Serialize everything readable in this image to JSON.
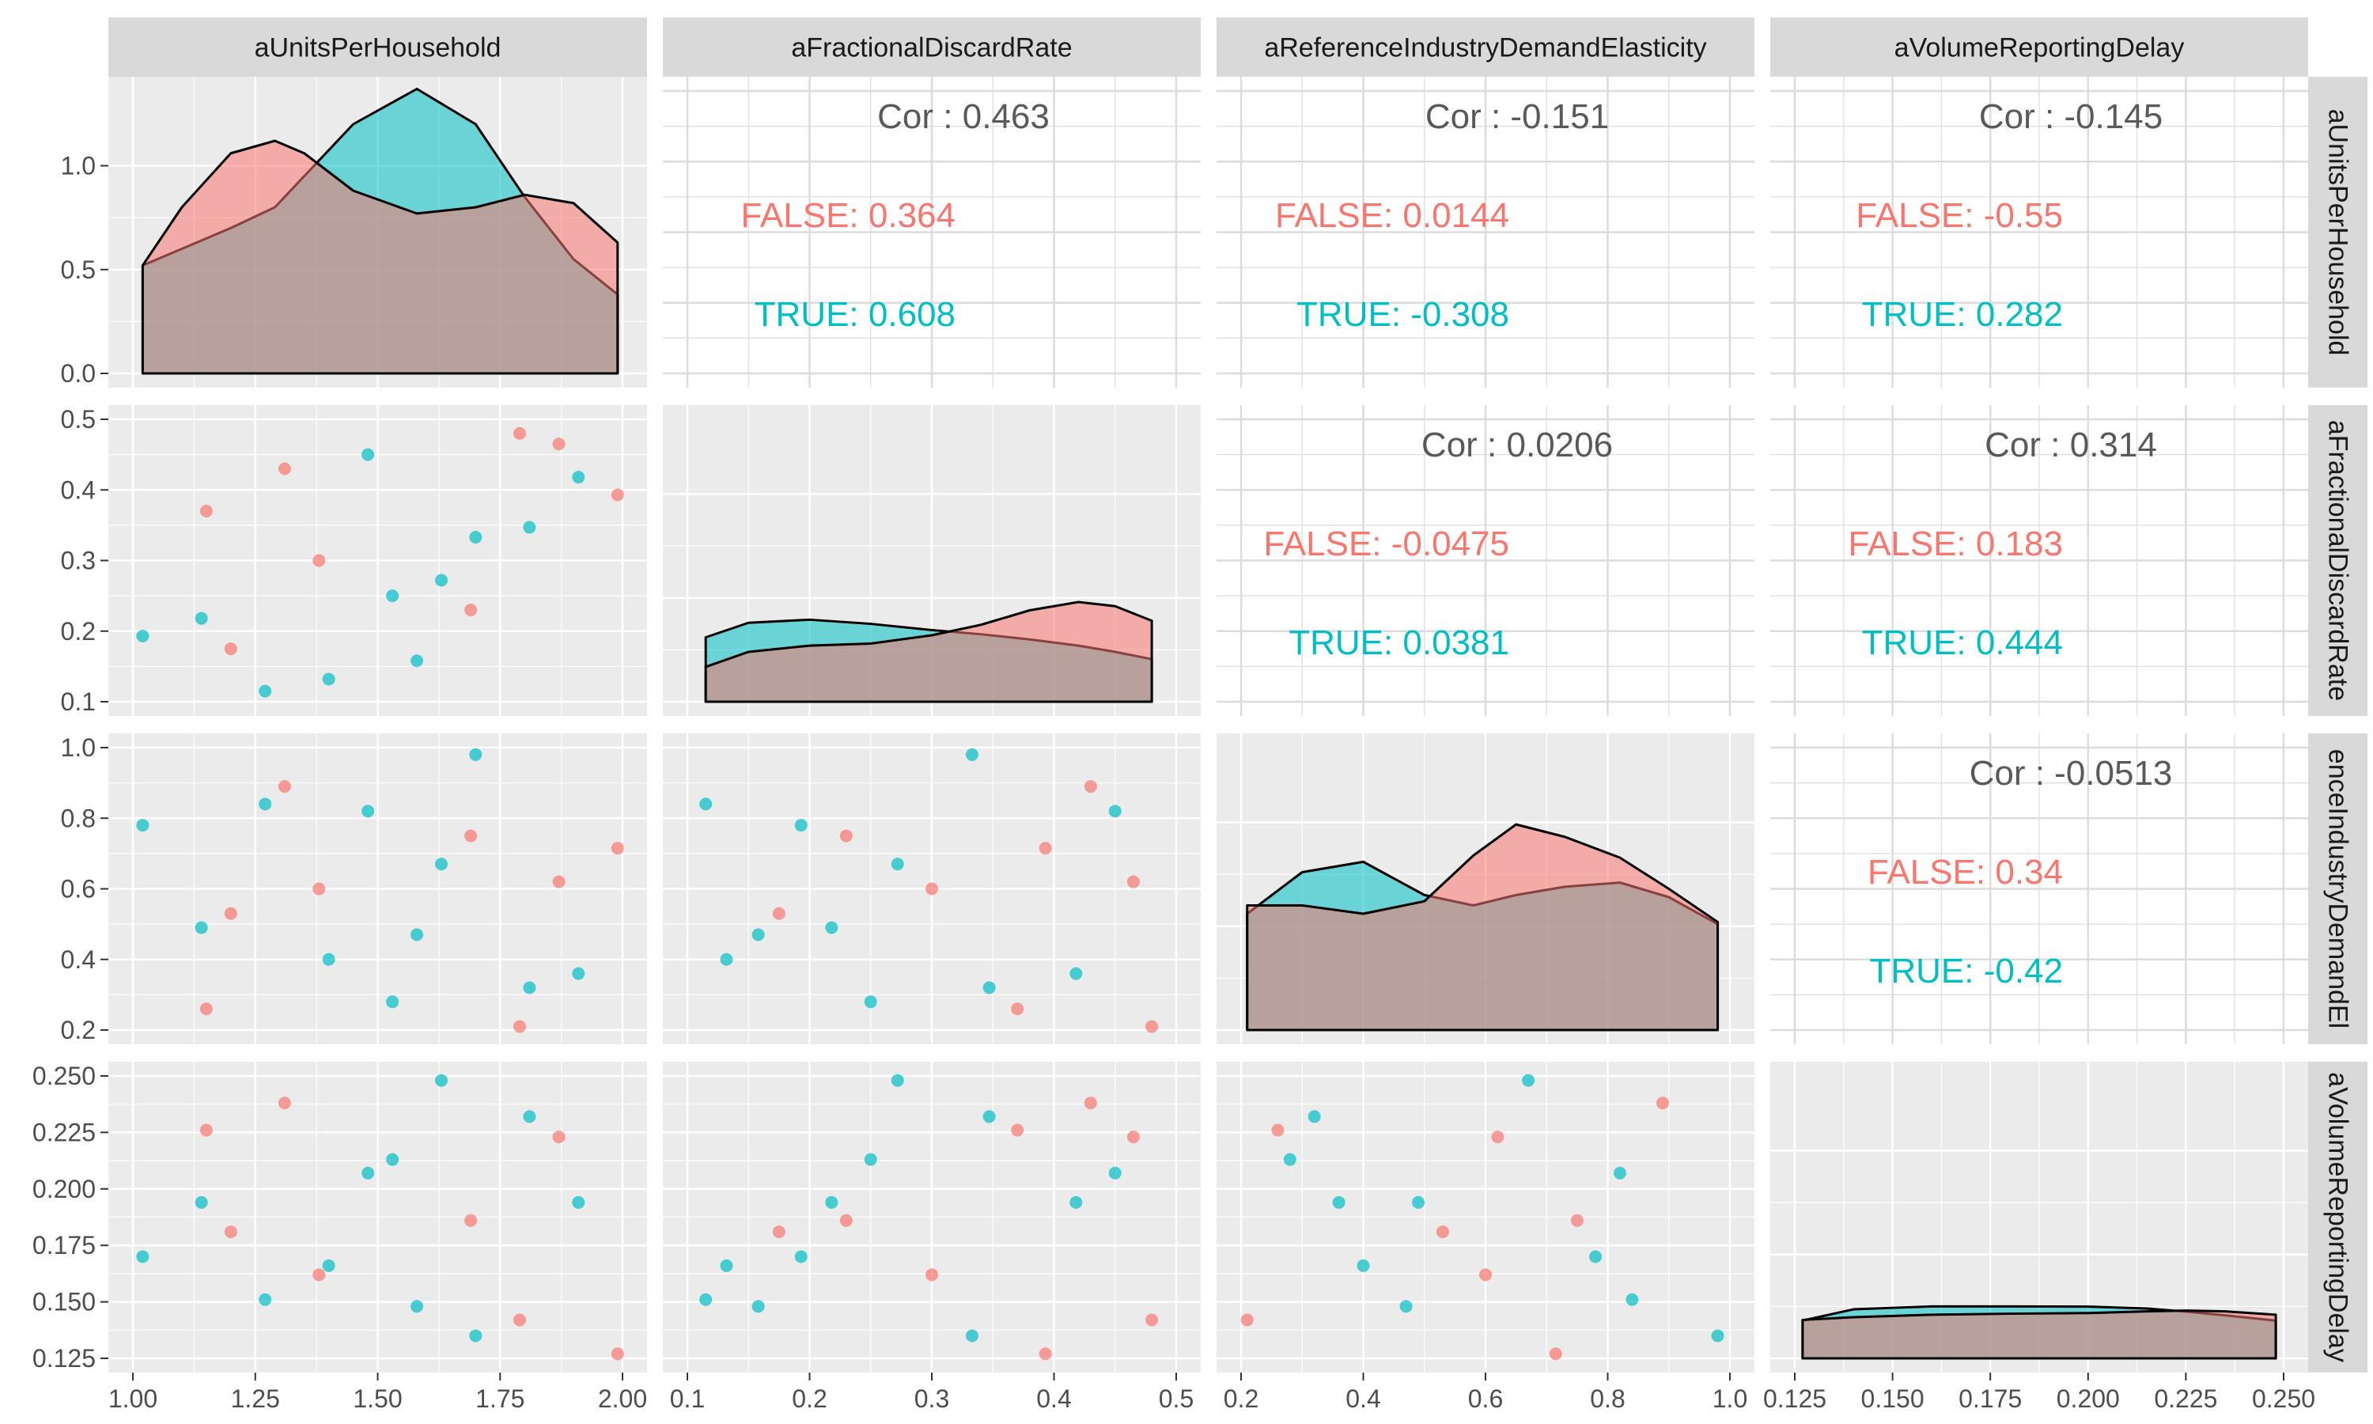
{
  "chart_data": {
    "type": "scatter-matrix",
    "variables": [
      "aUnitsPerHousehold",
      "aFractionalDiscardRate",
      "aReferenceIndustryDemandElasticity",
      "aVolumeReportingDelay"
    ],
    "row_labels": [
      "aUnitsPerHousehold",
      "aFractionalDiscardRate",
      "enceIndustryDemandEl",
      "aVolumeReportingDelay"
    ],
    "groups": [
      {
        "name": "FALSE",
        "color": "#F8766D"
      },
      {
        "name": "TRUE",
        "color": "#00BFC4"
      }
    ],
    "axes": [
      {
        "range": [
          1.0,
          2.0
        ],
        "ticks": [
          "1.00",
          "1.25",
          "1.50",
          "1.75",
          "2.00"
        ],
        "tick_values": [
          1.0,
          1.25,
          1.5,
          1.75,
          2.0
        ]
      },
      {
        "range": [
          0.1,
          0.5
        ],
        "ticks": [
          "0.1",
          "0.2",
          "0.3",
          "0.4",
          "0.5"
        ],
        "tick_values": [
          0.1,
          0.2,
          0.3,
          0.4,
          0.5
        ]
      },
      {
        "range": [
          0.2,
          1.0
        ],
        "ticks": [
          "0.2",
          "0.4",
          "0.6",
          "0.8",
          "1.0"
        ],
        "tick_values": [
          0.2,
          0.4,
          0.6,
          0.8,
          1.0
        ]
      },
      {
        "range": [
          0.125,
          0.25
        ],
        "ticks": [
          "0.125",
          "0.150",
          "0.175",
          "0.200",
          "0.225",
          "0.250"
        ],
        "tick_values": [
          0.125,
          0.15,
          0.175,
          0.2,
          0.225,
          0.25
        ]
      }
    ],
    "density_axis": {
      "range": [
        0,
        1.36
      ],
      "ticks": [
        "0.0",
        "0.5",
        "1.0"
      ],
      "tick_values": [
        0,
        0.5,
        1.0
      ]
    },
    "points": {
      "FALSE": [
        [
          1.15,
          0.37,
          0.26,
          0.226
        ],
        [
          1.2,
          0.175,
          0.53,
          0.181
        ],
        [
          1.31,
          0.43,
          0.89,
          0.238
        ],
        [
          1.38,
          0.3,
          0.6,
          0.162
        ],
        [
          1.69,
          0.23,
          0.75,
          0.186
        ],
        [
          1.79,
          0.48,
          0.21,
          0.142
        ],
        [
          1.87,
          0.465,
          0.62,
          0.223
        ],
        [
          1.99,
          0.393,
          0.715,
          0.127
        ]
      ],
      "TRUE": [
        [
          1.02,
          0.193,
          0.78,
          0.17
        ],
        [
          1.14,
          0.218,
          0.49,
          0.194
        ],
        [
          1.27,
          0.115,
          0.84,
          0.151
        ],
        [
          1.4,
          0.132,
          0.4,
          0.166
        ],
        [
          1.48,
          0.45,
          0.82,
          0.207
        ],
        [
          1.53,
          0.25,
          0.28,
          0.213
        ],
        [
          1.58,
          0.158,
          0.47,
          0.148
        ],
        [
          1.63,
          0.272,
          0.67,
          0.248
        ],
        [
          1.7,
          0.333,
          0.98,
          0.135
        ],
        [
          1.81,
          0.347,
          0.32,
          0.232
        ],
        [
          1.91,
          0.418,
          0.36,
          0.194
        ]
      ]
    },
    "densities": [
      {
        "x": [
          1.02,
          1.1,
          1.2,
          1.29,
          1.35,
          1.45,
          1.58,
          1.7,
          1.8,
          1.9,
          1.99
        ],
        "FALSE": [
          0.52,
          0.8,
          1.06,
          1.12,
          1.06,
          0.88,
          0.77,
          0.8,
          0.86,
          0.82,
          0.63
        ],
        "TRUE": [
          0.52,
          0.6,
          0.7,
          0.8,
          0.95,
          1.2,
          1.37,
          1.2,
          0.85,
          0.55,
          0.38
        ]
      },
      {
        "x": [
          0.115,
          0.15,
          0.2,
          0.25,
          0.3,
          0.34,
          0.38,
          0.42,
          0.45,
          0.48
        ],
        "FALSE": [
          0.168,
          0.24,
          0.27,
          0.28,
          0.32,
          0.37,
          0.44,
          0.48,
          0.46,
          0.39
        ],
        "TRUE": [
          0.31,
          0.38,
          0.395,
          0.375,
          0.345,
          0.325,
          0.3,
          0.27,
          0.24,
          0.205
        ]
      },
      {
        "x": [
          0.21,
          0.3,
          0.4,
          0.5,
          0.58,
          0.65,
          0.73,
          0.82,
          0.9,
          0.98
        ],
        "FALSE": [
          0.6,
          0.6,
          0.56,
          0.62,
          0.84,
          0.99,
          0.93,
          0.83,
          0.68,
          0.52
        ],
        "TRUE": [
          0.56,
          0.76,
          0.81,
          0.65,
          0.6,
          0.65,
          0.69,
          0.71,
          0.64,
          0.51
        ]
      },
      {
        "x": [
          0.127,
          0.14,
          0.16,
          0.18,
          0.2,
          0.215,
          0.225,
          0.235,
          0.248
        ],
        "FALSE": [
          0.185,
          0.198,
          0.21,
          0.215,
          0.218,
          0.226,
          0.23,
          0.226,
          0.21
        ],
        "TRUE": [
          0.182,
          0.236,
          0.25,
          0.25,
          0.249,
          0.24,
          0.225,
          0.207,
          0.182
        ]
      }
    ],
    "correlations": [
      {
        "row": 0,
        "col": 1,
        "overall": "Cor : 0.463",
        "FALSE": "FALSE: 0.364",
        "TRUE": "TRUE: 0.608"
      },
      {
        "row": 0,
        "col": 2,
        "overall": "Cor : -0.151",
        "FALSE": "FALSE: 0.0144",
        "TRUE": "TRUE: -0.308"
      },
      {
        "row": 0,
        "col": 3,
        "overall": "Cor : -0.145",
        "FALSE": "FALSE: -0.55",
        "TRUE": "TRUE: 0.282"
      },
      {
        "row": 1,
        "col": 2,
        "overall": "Cor : 0.0206",
        "FALSE": "FALSE: -0.0475",
        "TRUE": "TRUE: 0.0381"
      },
      {
        "row": 1,
        "col": 3,
        "overall": "Cor : 0.314",
        "FALSE": "FALSE: 0.183",
        "TRUE": "TRUE: 0.444"
      },
      {
        "row": 2,
        "col": 3,
        "overall": "Cor : -0.0513",
        "FALSE": "FALSE: 0.34",
        "TRUE": "TRUE: -0.42"
      }
    ],
    "grid": true,
    "background": "#EBEBEB",
    "strip_background": "#D9D9D9"
  }
}
